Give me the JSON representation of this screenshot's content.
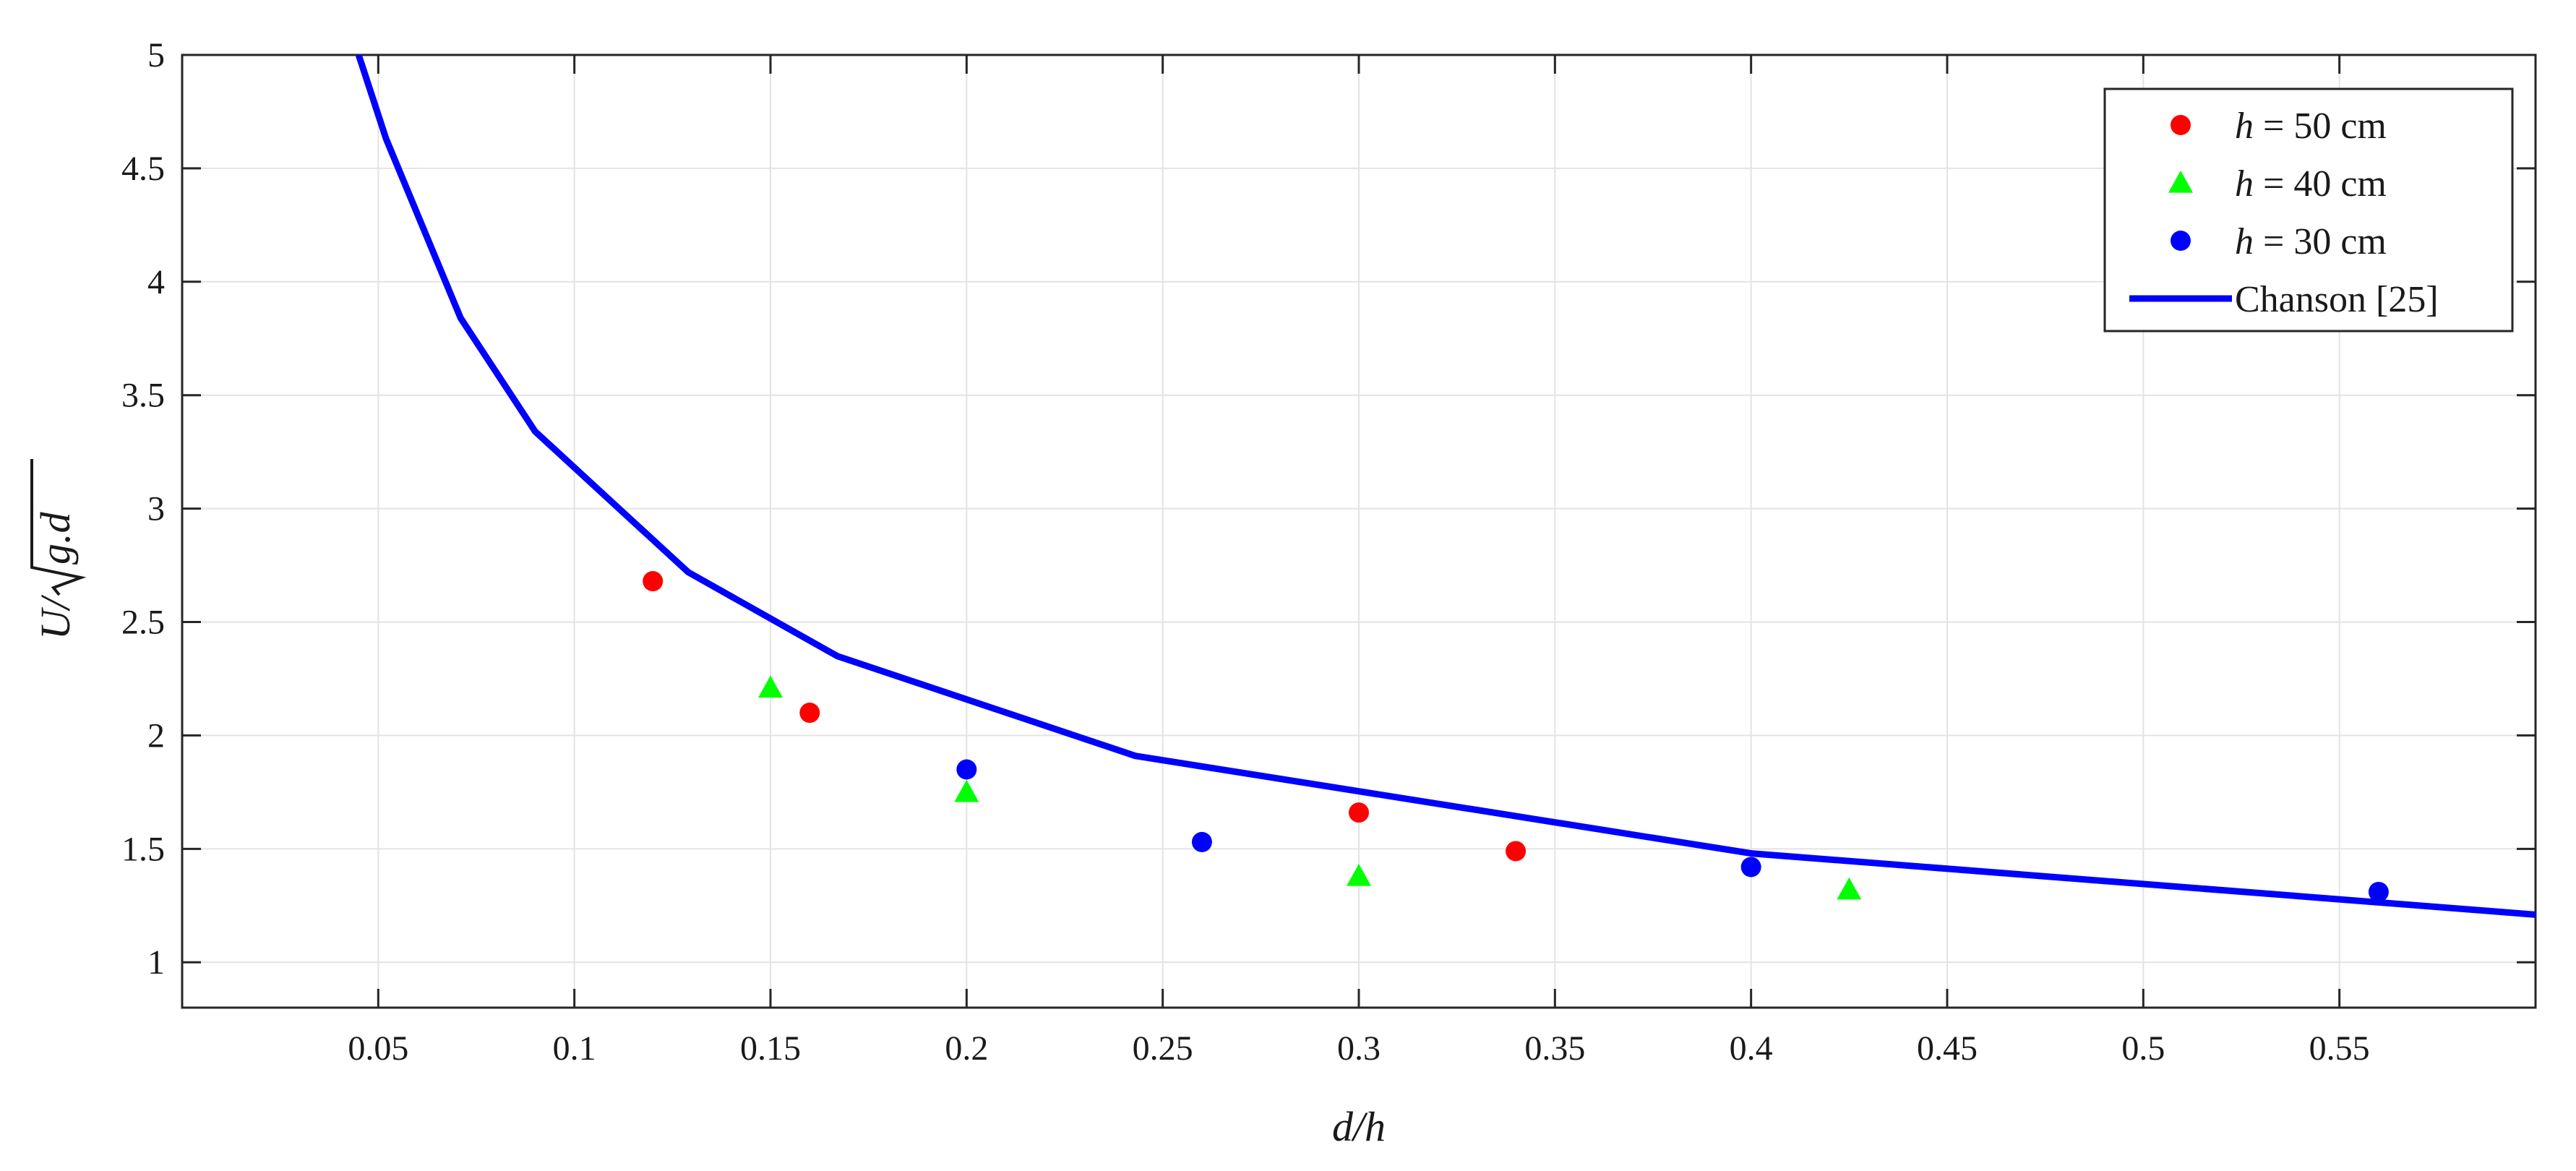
{
  "chart_data": {
    "type": "scatter",
    "xlabel": "d/h",
    "ylabel": "U/√g.d",
    "ylabel_parts": {
      "numerator": "U/",
      "radicand": "g.d"
    },
    "xlim": [
      0,
      0.6
    ],
    "ylim": [
      0.8,
      5
    ],
    "xticks": [
      0.05,
      0.1,
      0.15,
      0.2,
      0.25,
      0.3,
      0.35,
      0.4,
      0.45,
      0.5,
      0.55
    ],
    "xtick_labels": [
      "0.05",
      "0.1",
      "0.15",
      "0.2",
      "0.25",
      "0.3",
      "0.35",
      "0.4",
      "0.45",
      "0.5",
      "0.55"
    ],
    "yticks": [
      1,
      1.5,
      2,
      2.5,
      3,
      3.5,
      4,
      4.5,
      5
    ],
    "ytick_labels": [
      "1",
      "1.5",
      "2",
      "2.5",
      "3",
      "3.5",
      "4",
      "4.5",
      "5"
    ],
    "grid": true,
    "legend_position": "top-right",
    "series": [
      {
        "name": "h = 50 cm",
        "legend_var": "h",
        "legend_rest": " = 50 cm",
        "kind": "scatter",
        "marker": "circle",
        "color": "#ff0000",
        "x": [
          0.12,
          0.16,
          0.3,
          0.34
        ],
        "y": [
          2.68,
          2.1,
          1.66,
          1.49
        ]
      },
      {
        "name": "h = 40 cm",
        "legend_var": "h",
        "legend_rest": " = 40 cm",
        "kind": "scatter",
        "marker": "triangle",
        "color": "#00ff00",
        "x": [
          0.15,
          0.2,
          0.3,
          0.425
        ],
        "y": [
          2.21,
          1.75,
          1.38,
          1.32
        ]
      },
      {
        "name": "h = 30 cm",
        "legend_var": "h",
        "legend_rest": " = 30 cm",
        "kind": "scatter",
        "marker": "circle",
        "color": "#0000ff",
        "x": [
          0.2,
          0.26,
          0.4,
          0.56
        ],
        "y": [
          1.85,
          1.53,
          1.42,
          1.31
        ]
      },
      {
        "name": "Chanson [25]",
        "kind": "line",
        "color": "#0000ff",
        "x": [
          0.045,
          0.052,
          0.071,
          0.09,
          0.129,
          0.167,
          0.243,
          0.4,
          0.6
        ],
        "y": [
          5.0,
          4.63,
          3.84,
          3.34,
          2.72,
          2.35,
          1.91,
          1.48,
          1.21
        ]
      }
    ]
  }
}
